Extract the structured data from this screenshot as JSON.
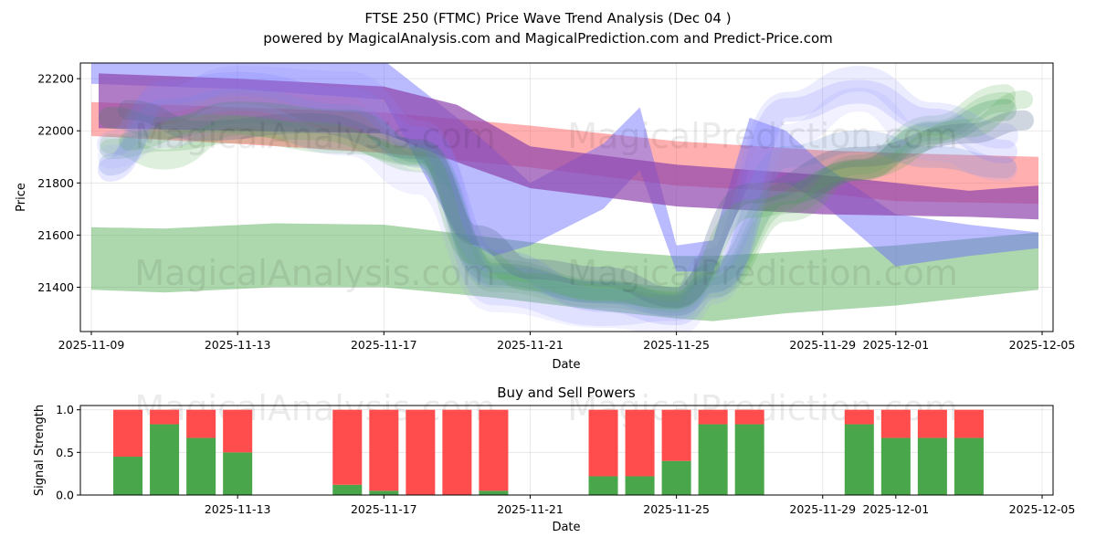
{
  "chart_data": [
    {
      "type": "area",
      "title": "FTSE 250 (FTMC) Price Wave Trend Analysis (Dec 04 )",
      "subtitle": "powered by MagicalAnalysis.com and MagicalPrediction.com and Predict-Price.com",
      "xlabel": "Date",
      "ylabel": "Price",
      "xlim": [
        -0.3,
        26.3
      ],
      "ylim": [
        21230,
        22260
      ],
      "x_ticks": [
        {
          "day": 0,
          "label": "2025-11-09"
        },
        {
          "day": 4,
          "label": "2025-11-13"
        },
        {
          "day": 8,
          "label": "2025-11-17"
        },
        {
          "day": 12,
          "label": "2025-11-21"
        },
        {
          "day": 16,
          "label": "2025-11-25"
        },
        {
          "day": 20,
          "label": "2025-11-29"
        },
        {
          "day": 22,
          "label": "2025-12-01"
        },
        {
          "day": 26,
          "label": "2025-12-05"
        }
      ],
      "y_ticks": [
        21400,
        21600,
        21800,
        22000,
        22200
      ],
      "watermarks": [
        "MagicalAnalysis.com",
        "MagicalPrediction.com"
      ],
      "bands": [
        {
          "name": "red trend band",
          "color": "#ff4d4d",
          "opacity": 0.45,
          "x": [
            0,
            4,
            8,
            12,
            16,
            20,
            22,
            25.9
          ],
          "upper": [
            22110,
            22090,
            22070,
            22020,
            21960,
            21925,
            21915,
            21900
          ],
          "lower": [
            21980,
            21950,
            21915,
            21860,
            21790,
            21760,
            21730,
            21720
          ]
        },
        {
          "name": "green lower band",
          "color": "#4aa64a",
          "opacity": 0.45,
          "x": [
            0,
            2,
            5,
            8,
            11,
            14,
            16,
            17,
            19,
            22,
            25.9
          ],
          "upper": [
            21630,
            21625,
            21645,
            21640,
            21590,
            21540,
            21520,
            21520,
            21535,
            21560,
            21610
          ],
          "lower": [
            21390,
            21380,
            21400,
            21400,
            21360,
            21310,
            21280,
            21270,
            21300,
            21330,
            21390
          ]
        },
        {
          "name": "blue wave band",
          "color": "#6666ff",
          "opacity": 0.45,
          "x": [
            0,
            4,
            8,
            10,
            11,
            12,
            14,
            15,
            16,
            17,
            18,
            19,
            20,
            22,
            24,
            25.9
          ],
          "upper": [
            22260,
            22290,
            22270,
            22050,
            21930,
            21800,
            21950,
            22090,
            21560,
            21580,
            22050,
            22000,
            21870,
            21680,
            21640,
            21610
          ],
          "lower": [
            22180,
            22160,
            22120,
            21600,
            21520,
            21560,
            21700,
            21850,
            21460,
            21460,
            21800,
            21800,
            21720,
            21480,
            21520,
            21550
          ]
        },
        {
          "name": "purple trend band",
          "color": "#8e44ad",
          "opacity": 0.7,
          "x": [
            0.2,
            4,
            8,
            10,
            12,
            16,
            20,
            24,
            25.9
          ],
          "upper": [
            22220,
            22200,
            22170,
            22100,
            21940,
            21870,
            21830,
            21770,
            21790
          ],
          "lower": [
            22010,
            22000,
            21990,
            21880,
            21780,
            21710,
            21680,
            21670,
            21660
          ]
        }
      ],
      "wave_paths": [
        {
          "color": "#4aa64a",
          "opacity": 0.18,
          "width": 22,
          "x": [
            0.5,
            2,
            4,
            7,
            9,
            11,
            14,
            16,
            17,
            19,
            21,
            23,
            25
          ],
          "y": [
            21950,
            21890,
            22020,
            21960,
            21880,
            21470,
            21390,
            21340,
            21420,
            21720,
            21870,
            22020,
            22140
          ]
        },
        {
          "color": "#4aa64a",
          "opacity": 0.18,
          "width": 22,
          "x": [
            0.5,
            2,
            4,
            7,
            9,
            11,
            14,
            16,
            17,
            19,
            21,
            23,
            25
          ],
          "y": [
            21930,
            21960,
            21990,
            21950,
            21910,
            21420,
            21360,
            21330,
            21400,
            21690,
            21850,
            22000,
            22110
          ]
        },
        {
          "color": "#2e8b57",
          "opacity": 0.22,
          "width": 24,
          "x": [
            0.5,
            2,
            4,
            7,
            9,
            11,
            14,
            16,
            17,
            19,
            21,
            23,
            25
          ],
          "y": [
            22050,
            22010,
            22070,
            22040,
            21920,
            21450,
            21380,
            21360,
            21450,
            21760,
            21850,
            21990,
            22080
          ]
        },
        {
          "color": "#6a8fd8",
          "opacity": 0.22,
          "width": 24,
          "x": [
            0.5,
            2,
            4,
            7,
            9,
            11,
            14,
            16,
            17,
            19,
            21,
            23,
            25
          ],
          "y": [
            21870,
            22080,
            22120,
            22060,
            21900,
            21440,
            21380,
            21330,
            21420,
            21900,
            21960,
            21900,
            21860
          ]
        },
        {
          "color": "#7a7aff",
          "opacity": 0.18,
          "width": 26,
          "x": [
            0.5,
            2,
            4,
            7,
            9,
            11,
            14,
            16,
            17,
            19,
            21,
            23,
            25
          ],
          "y": [
            21850,
            22150,
            22180,
            22120,
            21970,
            21500,
            21350,
            21300,
            21400,
            22080,
            22150,
            22040,
            21920
          ]
        },
        {
          "color": "#8a8aff",
          "opacity": 0.16,
          "width": 28,
          "x": [
            0.5,
            2,
            4,
            7,
            9,
            11,
            14,
            16,
            17,
            19,
            21,
            23,
            25
          ],
          "y": [
            21950,
            22120,
            22200,
            22180,
            21990,
            21380,
            21300,
            21320,
            21500,
            22100,
            22200,
            22060,
            21980
          ]
        },
        {
          "color": "#9a9aff",
          "opacity": 0.14,
          "width": 26,
          "x": [
            0.5,
            2,
            4,
            7,
            9,
            11,
            14,
            16,
            17,
            19,
            21,
            23,
            25
          ],
          "y": [
            21900,
            21980,
            22060,
            21950,
            21800,
            21350,
            21290,
            21260,
            21380,
            21980,
            22120,
            21930,
            21850
          ]
        },
        {
          "color": "#556b8e",
          "opacity": 0.28,
          "width": 22,
          "x": [
            1,
            3,
            6,
            9,
            10.5,
            12,
            14,
            16,
            18,
            21,
            24,
            25.5
          ],
          "y": [
            22080,
            22000,
            22030,
            21930,
            21600,
            21470,
            21440,
            21360,
            21760,
            21900,
            21990,
            22040
          ]
        },
        {
          "color": "#4aa64a",
          "opacity": 0.2,
          "width": 20,
          "x": [
            1,
            3,
            6,
            9,
            10.5,
            12,
            14,
            16,
            18,
            21,
            24,
            25.5
          ],
          "y": [
            21960,
            22030,
            22000,
            21900,
            21520,
            21420,
            21380,
            21350,
            21700,
            21850,
            22010,
            22120
          ]
        }
      ]
    },
    {
      "type": "bar",
      "title": "Buy and Sell Powers",
      "xlabel": "Date",
      "ylabel": "Signal Strength",
      "xlim": [
        -0.3,
        26.3
      ],
      "ylim": [
        0,
        1.05
      ],
      "y_ticks": [
        "0.0",
        "0.5",
        "1.0"
      ],
      "x_ticks": [
        {
          "day": 4,
          "label": "2025-11-13"
        },
        {
          "day": 8,
          "label": "2025-11-17"
        },
        {
          "day": 12,
          "label": "2025-11-21"
        },
        {
          "day": 16,
          "label": "2025-11-25"
        },
        {
          "day": 20,
          "label": "2025-11-29"
        },
        {
          "day": 22,
          "label": "2025-12-01"
        },
        {
          "day": 26,
          "label": "2025-12-05"
        }
      ],
      "watermarks": [
        "MagicalAnalysis.com",
        "MagicalPrediction.com"
      ],
      "buy_color": "#4aa64a",
      "sell_color": "#ff4d4d",
      "days": [
        1,
        2,
        3,
        4,
        7,
        8,
        9,
        10,
        11,
        14,
        15,
        16,
        17,
        18,
        21,
        22,
        23,
        24
      ],
      "buy": [
        0.45,
        0.83,
        0.67,
        0.5,
        0.12,
        0.05,
        0.0,
        0.0,
        0.05,
        0.22,
        0.22,
        0.4,
        0.83,
        0.83,
        0.83,
        0.67,
        0.67,
        0.67
      ],
      "sell": [
        0.55,
        0.17,
        0.33,
        0.5,
        0.88,
        0.95,
        1.0,
        1.0,
        0.95,
        0.78,
        0.78,
        0.6,
        0.17,
        0.17,
        0.17,
        0.33,
        0.33,
        0.33
      ]
    }
  ]
}
